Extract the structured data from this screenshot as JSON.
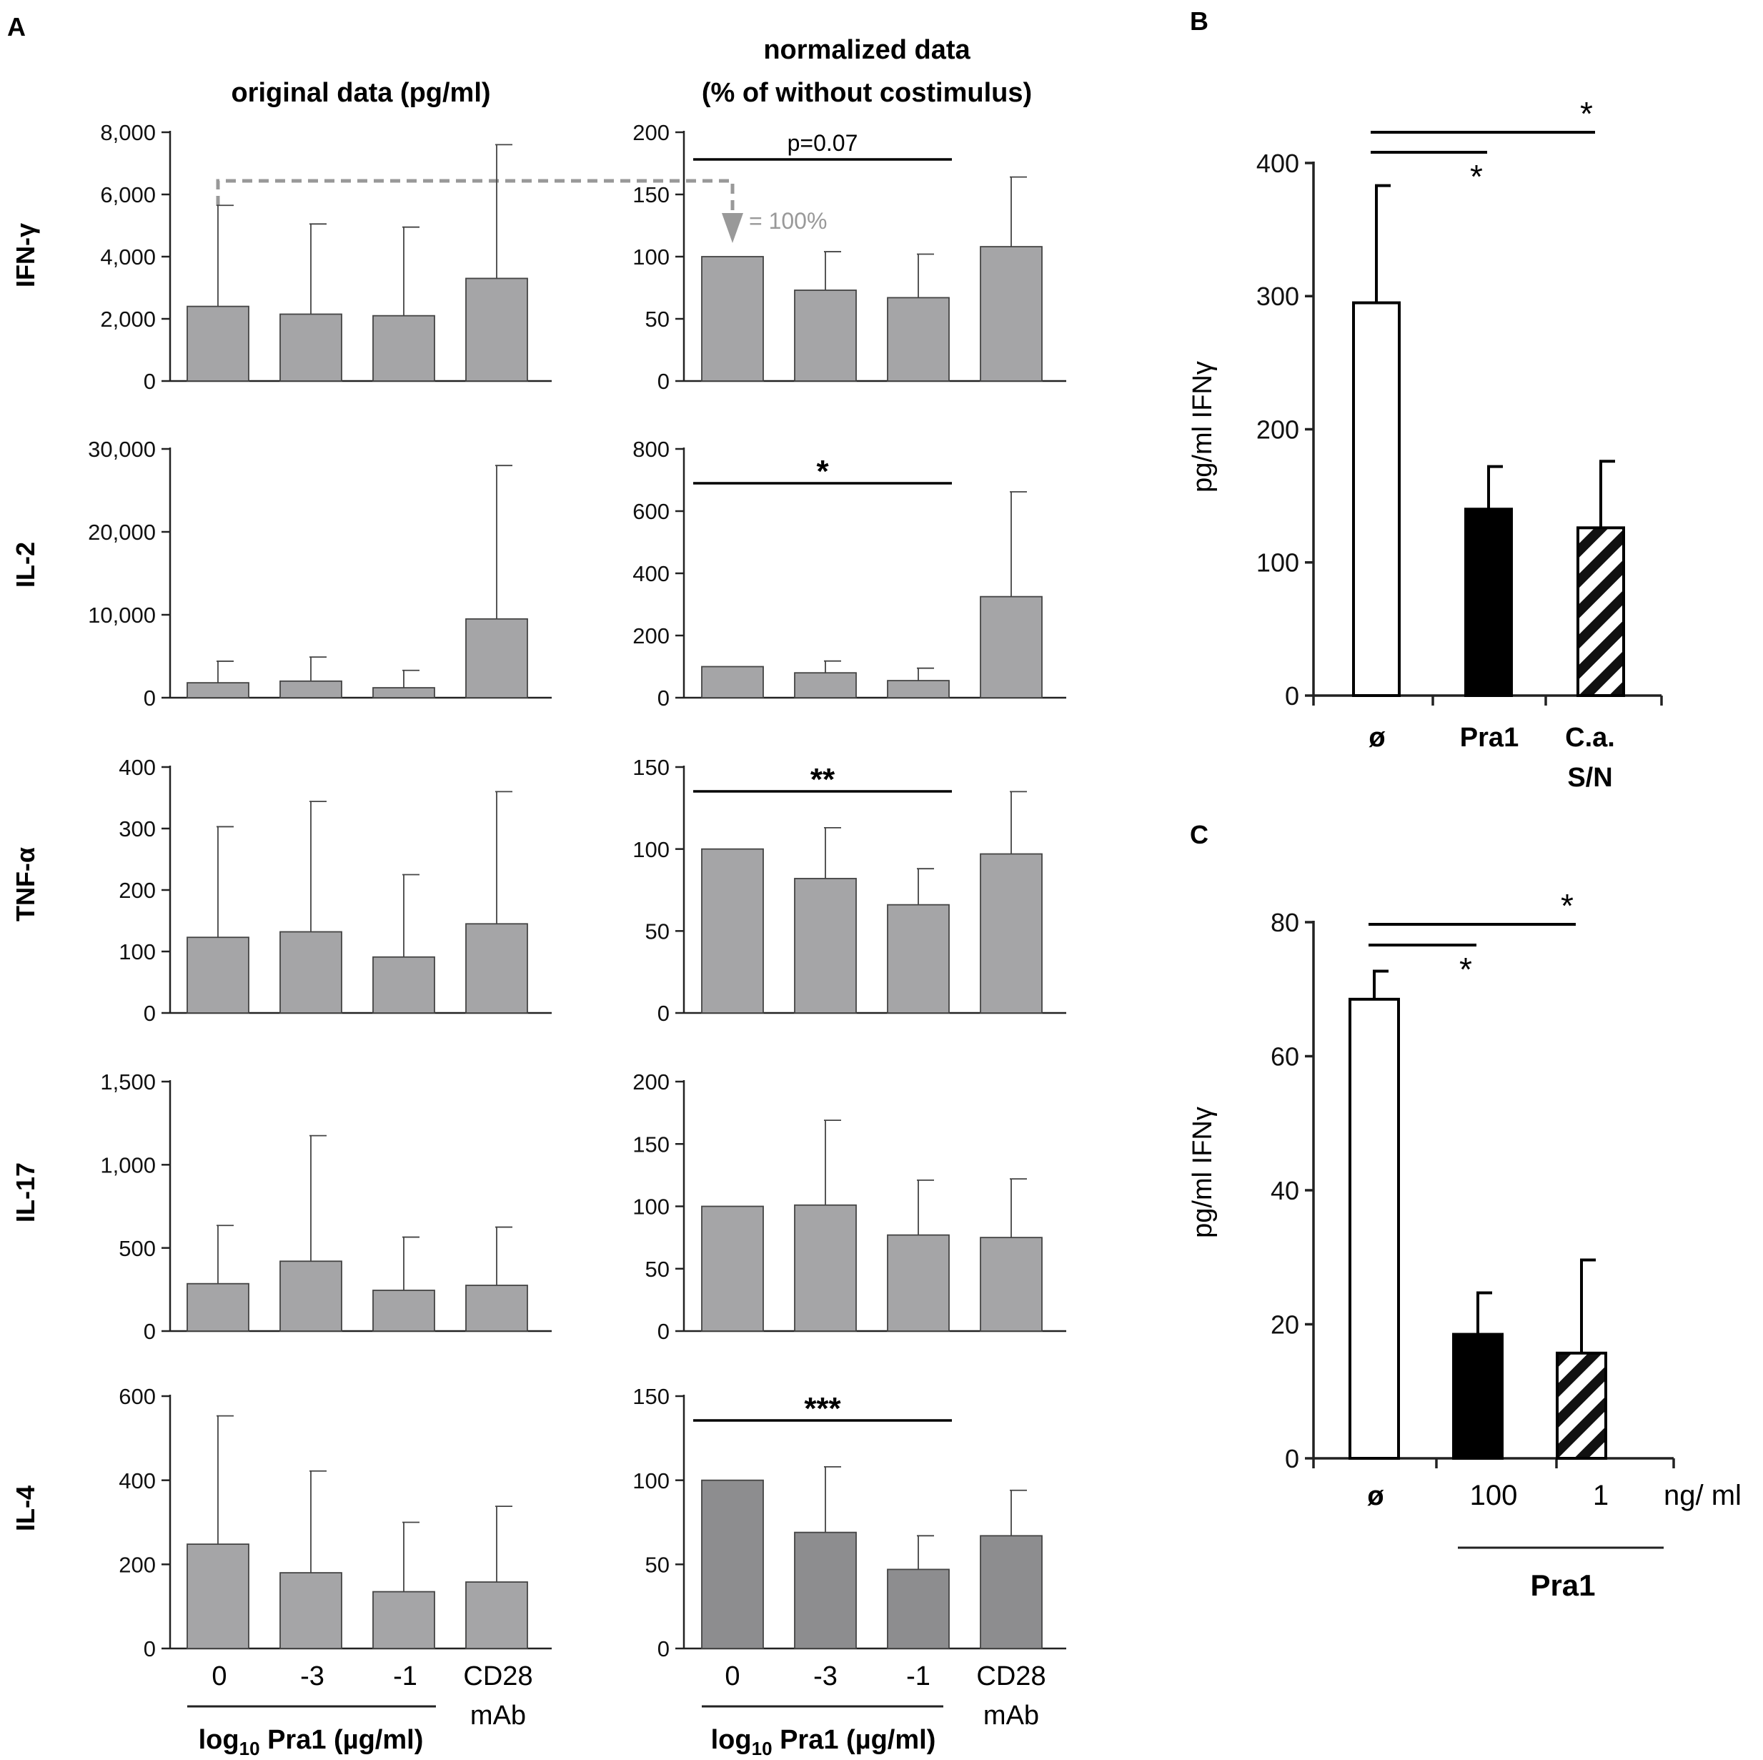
{
  "panel_labels": {
    "a": "A",
    "b": "B",
    "c": "C"
  },
  "panel_a": {
    "col_titles": {
      "original": "original data (pg/ml)",
      "normalized_line1": "normalized data",
      "normalized_line2": "(% of without costimulus)"
    },
    "row_labels": [
      "IFN-γ",
      "IL-2",
      "TNF-α",
      "IL-17",
      "IL-4"
    ],
    "x_categories": [
      "0",
      "-3",
      "-1",
      "CD28"
    ],
    "cd28_suffix": "mAb",
    "x_group_label_pre": "log",
    "x_group_label_sub": "10",
    "x_group_label_post": " Pra1 (µg/ml)",
    "arrow_label": "= 100%"
  },
  "panel_b": {
    "ylabel": "pg/ml IFNγ",
    "categories": [
      "ø",
      "Pra1",
      "C.a.",
      "S/N"
    ]
  },
  "panel_c": {
    "ylabel": "pg/ml IFNγ",
    "categories": [
      "ø",
      "100",
      "1"
    ],
    "unit": "ng/ ml",
    "group_label": "Pra1"
  },
  "colors": {
    "bar": "#a5a5a7",
    "bar_dark": "#8d8d8f",
    "edge": "#444444",
    "axis": "#222222",
    "arrow": "#999999"
  },
  "chart_data": [
    {
      "id": "A-IFNg-original",
      "type": "bar",
      "title": "original data (pg/ml)",
      "ylabel": "IFN-γ",
      "categories": [
        "0",
        "-3",
        "-1",
        "CD28 mAb"
      ],
      "ylim": [
        0,
        8000
      ],
      "yticks": [
        0,
        2000,
        4000,
        6000,
        8000
      ],
      "ytick_labels": [
        "0",
        "2,000",
        "4,000",
        "6,000",
        "8,000"
      ],
      "values": [
        2400,
        2150,
        2100,
        3300
      ],
      "error_upper": [
        5650,
        5050,
        4950,
        7600
      ]
    },
    {
      "id": "A-IFNg-normalized",
      "type": "bar",
      "title": "normalized data (% of without costimulus)",
      "ylabel": "IFN-γ",
      "categories": [
        "0",
        "-3",
        "-1",
        "CD28 mAb"
      ],
      "ylim": [
        0,
        200
      ],
      "yticks": [
        0,
        50,
        100,
        150,
        200
      ],
      "ytick_labels": [
        "0",
        "50",
        "100",
        "150",
        "200"
      ],
      "values": [
        100,
        73,
        67,
        108
      ],
      "error_upper": [
        100,
        104,
        102,
        164
      ],
      "annotations": [
        {
          "text": "p=0.07",
          "from": 0,
          "to": 2
        }
      ]
    },
    {
      "id": "A-IL2-original",
      "type": "bar",
      "ylabel": "IL-2",
      "categories": [
        "0",
        "-3",
        "-1",
        "CD28 mAb"
      ],
      "ylim": [
        0,
        30000
      ],
      "yticks": [
        0,
        10000,
        20000,
        30000
      ],
      "ytick_labels": [
        "0",
        "10,000",
        "20,000",
        "30,000"
      ],
      "values": [
        1800,
        2000,
        1200,
        9500
      ],
      "error_upper": [
        4400,
        4900,
        3300,
        28000
      ]
    },
    {
      "id": "A-IL2-normalized",
      "type": "bar",
      "ylabel": "IL-2",
      "categories": [
        "0",
        "-3",
        "-1",
        "CD28 mAb"
      ],
      "ylim": [
        0,
        800
      ],
      "yticks": [
        0,
        200,
        400,
        600,
        800
      ],
      "ytick_labels": [
        "0",
        "200",
        "400",
        "600",
        "800"
      ],
      "values": [
        100,
        80,
        55,
        325
      ],
      "error_upper": [
        100,
        118,
        95,
        662
      ],
      "annotations": [
        {
          "text": "*",
          "from": 0,
          "to": 2
        }
      ]
    },
    {
      "id": "A-TNFa-original",
      "type": "bar",
      "ylabel": "TNF-α",
      "categories": [
        "0",
        "-3",
        "-1",
        "CD28 mAb"
      ],
      "ylim": [
        0,
        400
      ],
      "yticks": [
        0,
        100,
        200,
        300,
        400
      ],
      "ytick_labels": [
        "0",
        "100",
        "200",
        "300",
        "400"
      ],
      "values": [
        123,
        132,
        91,
        145
      ],
      "error_upper": [
        303,
        344,
        225,
        360
      ]
    },
    {
      "id": "A-TNFa-normalized",
      "type": "bar",
      "ylabel": "TNF-α",
      "categories": [
        "0",
        "-3",
        "-1",
        "CD28 mAb"
      ],
      "ylim": [
        0,
        150
      ],
      "yticks": [
        0,
        50,
        100,
        150
      ],
      "ytick_labels": [
        "0",
        "50",
        "100",
        "150"
      ],
      "values": [
        100,
        82,
        66,
        97
      ],
      "error_upper": [
        100,
        113,
        88,
        135
      ],
      "annotations": [
        {
          "text": "**",
          "from": 0,
          "to": 2
        }
      ]
    },
    {
      "id": "A-IL17-original",
      "type": "bar",
      "ylabel": "IL-17",
      "categories": [
        "0",
        "-3",
        "-1",
        "CD28 mAb"
      ],
      "ylim": [
        0,
        1500
      ],
      "yticks": [
        0,
        500,
        1000,
        1500
      ],
      "ytick_labels": [
        "0",
        "500",
        "1,000",
        "1,500"
      ],
      "values": [
        285,
        420,
        245,
        275
      ],
      "error_upper": [
        635,
        1175,
        565,
        625
      ]
    },
    {
      "id": "A-IL17-normalized",
      "type": "bar",
      "ylabel": "IL-17",
      "categories": [
        "0",
        "-3",
        "-1",
        "CD28 mAb"
      ],
      "ylim": [
        0,
        200
      ],
      "yticks": [
        0,
        50,
        100,
        150,
        200
      ],
      "ytick_labels": [
        "0",
        "50",
        "100",
        "150",
        "200"
      ],
      "values": [
        100,
        101,
        77,
        75
      ],
      "error_upper": [
        100,
        169,
        121,
        122
      ]
    },
    {
      "id": "A-IL4-original",
      "type": "bar",
      "ylabel": "IL-4",
      "categories": [
        "0",
        "-3",
        "-1",
        "CD28 mAb"
      ],
      "ylim": [
        0,
        600
      ],
      "yticks": [
        0,
        200,
        400,
        600
      ],
      "ytick_labels": [
        "0",
        "200",
        "400",
        "600"
      ],
      "values": [
        248,
        180,
        135,
        158
      ],
      "error_upper": [
        553,
        422,
        300,
        338
      ]
    },
    {
      "id": "A-IL4-normalized",
      "type": "bar",
      "ylabel": "IL-4",
      "categories": [
        "0",
        "-3",
        "-1",
        "CD28 mAb"
      ],
      "ylim": [
        0,
        150
      ],
      "yticks": [
        0,
        50,
        100,
        150
      ],
      "ytick_labels": [
        "0",
        "50",
        "100",
        "150"
      ],
      "values": [
        100,
        69,
        47,
        67
      ],
      "error_upper": [
        100,
        108,
        67,
        94
      ],
      "annotations": [
        {
          "text": "***",
          "from": 0,
          "to": 2
        }
      ]
    },
    {
      "id": "B",
      "type": "bar",
      "ylabel": "pg/ml IFNγ",
      "categories": [
        "ø",
        "Pra1",
        "C.a. S/N"
      ],
      "ylim": [
        0,
        400
      ],
      "yticks": [
        0,
        100,
        200,
        300,
        400
      ],
      "ytick_labels": [
        "0",
        "100",
        "200",
        "300",
        "400"
      ],
      "values": [
        295,
        140,
        126
      ],
      "error_upper": [
        383,
        172,
        176
      ],
      "fills": [
        "white",
        "black",
        "hatched"
      ],
      "annotations": [
        {
          "text": "*",
          "from": 0,
          "to": 1
        },
        {
          "text": "*",
          "from": 0,
          "to": 2
        }
      ]
    },
    {
      "id": "C",
      "type": "bar",
      "ylabel": "pg/ml IFNγ",
      "categories": [
        "ø",
        "100",
        "1"
      ],
      "xunit": "ng/ ml",
      "group_label": "Pra1",
      "ylim": [
        0,
        80
      ],
      "yticks": [
        0,
        20,
        40,
        60,
        80
      ],
      "ytick_labels": [
        "0",
        "20",
        "40",
        "60",
        "80"
      ],
      "values": [
        68.5,
        18.5,
        15.7
      ],
      "error_upper": [
        72.7,
        24.7,
        29.6
      ],
      "fills": [
        "white",
        "black",
        "hatched"
      ],
      "annotations": [
        {
          "text": "*",
          "from": 0,
          "to": 1
        },
        {
          "text": "*",
          "from": 0,
          "to": 2
        }
      ]
    }
  ]
}
